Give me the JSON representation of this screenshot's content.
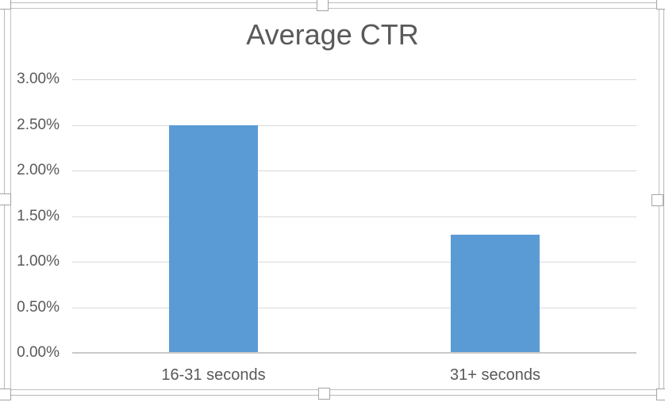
{
  "chart_data": {
    "type": "bar",
    "title": "Average CTR",
    "categories": [
      "16-31 seconds",
      "31+ seconds"
    ],
    "values": [
      2.5,
      1.3
    ],
    "value_format": "percent",
    "xlabel": "",
    "ylabel": "",
    "ylim": [
      0,
      3.0
    ],
    "ytick_step": 0.5,
    "ytick_labels": [
      "0.00%",
      "0.50%",
      "1.00%",
      "1.50%",
      "2.00%",
      "2.50%",
      "3.00%"
    ],
    "grid": true,
    "legend": false,
    "bar_color": "#5b9bd5"
  },
  "colors": {
    "title_text": "#595959",
    "axis_text": "#595959",
    "gridline": "#d9d9d9",
    "axis_line": "#c9c9c9",
    "selection_frame": "#b9b9b9",
    "background": "#ffffff"
  },
  "selection": {
    "state": "chart-object-selected",
    "handle_positions": [
      "top-left",
      "top-center",
      "top-right",
      "middle-left",
      "middle-right",
      "bottom-left",
      "bottom-center",
      "bottom-right"
    ]
  }
}
